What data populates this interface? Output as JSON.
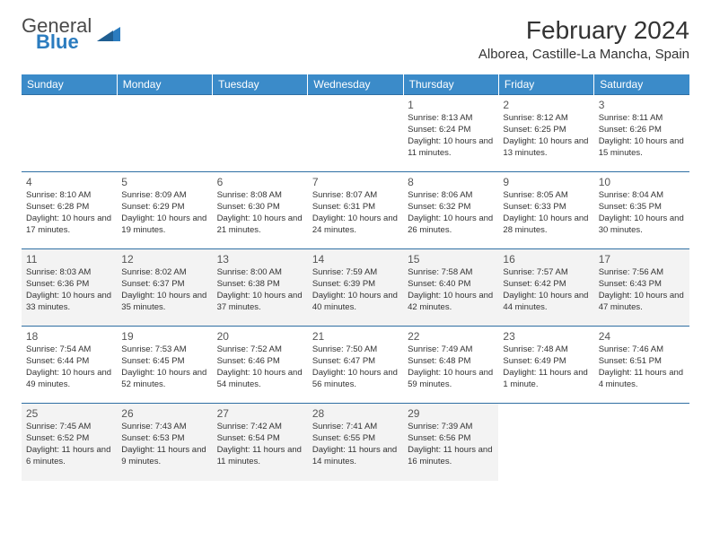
{
  "brand": {
    "line1": "General",
    "line2": "Blue"
  },
  "title": "February 2024",
  "location": "Alborea, Castille-La Mancha, Spain",
  "colors": {
    "header_bg": "#3b8bc9",
    "header_fg": "#ffffff",
    "row_border": "#2f6fa3",
    "alt_row_bg": "#f3f3f3",
    "text": "#333333",
    "brand_blue": "#2b7cbf"
  },
  "typography": {
    "title_fontsize": 28,
    "location_fontsize": 15,
    "dayhead_fontsize": 12,
    "daynum_fontsize": 12,
    "cell_fontsize": 9.5
  },
  "dayHeaders": [
    "Sunday",
    "Monday",
    "Tuesday",
    "Wednesday",
    "Thursday",
    "Friday",
    "Saturday"
  ],
  "weeks": [
    [
      {
        "empty": true
      },
      {
        "empty": true
      },
      {
        "empty": true
      },
      {
        "empty": true
      },
      {
        "day": "1",
        "sunrise": "8:13 AM",
        "sunset": "6:24 PM",
        "daylight": "10 hours and 11 minutes."
      },
      {
        "day": "2",
        "sunrise": "8:12 AM",
        "sunset": "6:25 PM",
        "daylight": "10 hours and 13 minutes."
      },
      {
        "day": "3",
        "sunrise": "8:11 AM",
        "sunset": "6:26 PM",
        "daylight": "10 hours and 15 minutes."
      }
    ],
    [
      {
        "day": "4",
        "sunrise": "8:10 AM",
        "sunset": "6:28 PM",
        "daylight": "10 hours and 17 minutes."
      },
      {
        "day": "5",
        "sunrise": "8:09 AM",
        "sunset": "6:29 PM",
        "daylight": "10 hours and 19 minutes."
      },
      {
        "day": "6",
        "sunrise": "8:08 AM",
        "sunset": "6:30 PM",
        "daylight": "10 hours and 21 minutes."
      },
      {
        "day": "7",
        "sunrise": "8:07 AM",
        "sunset": "6:31 PM",
        "daylight": "10 hours and 24 minutes."
      },
      {
        "day": "8",
        "sunrise": "8:06 AM",
        "sunset": "6:32 PM",
        "daylight": "10 hours and 26 minutes."
      },
      {
        "day": "9",
        "sunrise": "8:05 AM",
        "sunset": "6:33 PM",
        "daylight": "10 hours and 28 minutes."
      },
      {
        "day": "10",
        "sunrise": "8:04 AM",
        "sunset": "6:35 PM",
        "daylight": "10 hours and 30 minutes."
      }
    ],
    [
      {
        "day": "11",
        "sunrise": "8:03 AM",
        "sunset": "6:36 PM",
        "daylight": "10 hours and 33 minutes."
      },
      {
        "day": "12",
        "sunrise": "8:02 AM",
        "sunset": "6:37 PM",
        "daylight": "10 hours and 35 minutes."
      },
      {
        "day": "13",
        "sunrise": "8:00 AM",
        "sunset": "6:38 PM",
        "daylight": "10 hours and 37 minutes."
      },
      {
        "day": "14",
        "sunrise": "7:59 AM",
        "sunset": "6:39 PM",
        "daylight": "10 hours and 40 minutes."
      },
      {
        "day": "15",
        "sunrise": "7:58 AM",
        "sunset": "6:40 PM",
        "daylight": "10 hours and 42 minutes."
      },
      {
        "day": "16",
        "sunrise": "7:57 AM",
        "sunset": "6:42 PM",
        "daylight": "10 hours and 44 minutes."
      },
      {
        "day": "17",
        "sunrise": "7:56 AM",
        "sunset": "6:43 PM",
        "daylight": "10 hours and 47 minutes."
      }
    ],
    [
      {
        "day": "18",
        "sunrise": "7:54 AM",
        "sunset": "6:44 PM",
        "daylight": "10 hours and 49 minutes."
      },
      {
        "day": "19",
        "sunrise": "7:53 AM",
        "sunset": "6:45 PM",
        "daylight": "10 hours and 52 minutes."
      },
      {
        "day": "20",
        "sunrise": "7:52 AM",
        "sunset": "6:46 PM",
        "daylight": "10 hours and 54 minutes."
      },
      {
        "day": "21",
        "sunrise": "7:50 AM",
        "sunset": "6:47 PM",
        "daylight": "10 hours and 56 minutes."
      },
      {
        "day": "22",
        "sunrise": "7:49 AM",
        "sunset": "6:48 PM",
        "daylight": "10 hours and 59 minutes."
      },
      {
        "day": "23",
        "sunrise": "7:48 AM",
        "sunset": "6:49 PM",
        "daylight": "11 hours and 1 minute."
      },
      {
        "day": "24",
        "sunrise": "7:46 AM",
        "sunset": "6:51 PM",
        "daylight": "11 hours and 4 minutes."
      }
    ],
    [
      {
        "day": "25",
        "sunrise": "7:45 AM",
        "sunset": "6:52 PM",
        "daylight": "11 hours and 6 minutes."
      },
      {
        "day": "26",
        "sunrise": "7:43 AM",
        "sunset": "6:53 PM",
        "daylight": "11 hours and 9 minutes."
      },
      {
        "day": "27",
        "sunrise": "7:42 AM",
        "sunset": "6:54 PM",
        "daylight": "11 hours and 11 minutes."
      },
      {
        "day": "28",
        "sunrise": "7:41 AM",
        "sunset": "6:55 PM",
        "daylight": "11 hours and 14 minutes."
      },
      {
        "day": "29",
        "sunrise": "7:39 AM",
        "sunset": "6:56 PM",
        "daylight": "11 hours and 16 minutes."
      },
      {
        "empty": true
      },
      {
        "empty": true
      }
    ]
  ],
  "labels": {
    "sunrise": "Sunrise: ",
    "sunset": "Sunset: ",
    "daylight": "Daylight: "
  }
}
